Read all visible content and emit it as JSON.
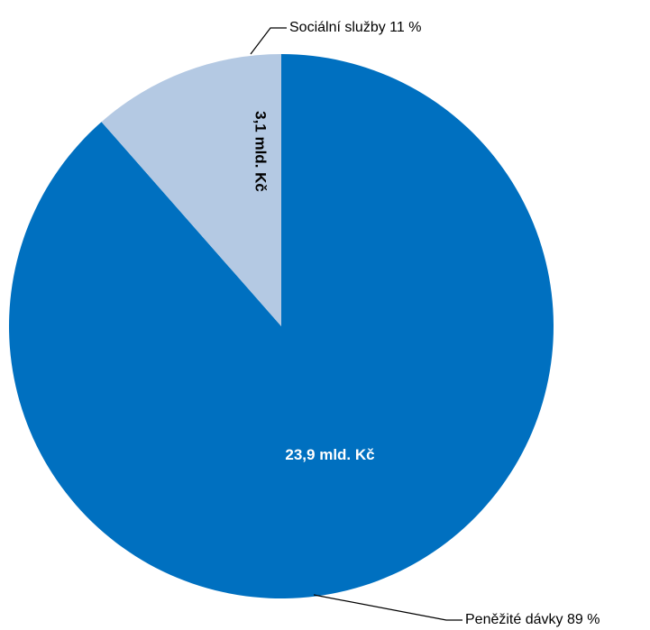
{
  "chart_data": {
    "type": "pie",
    "slices": [
      {
        "name": "Peněžité dávky",
        "percent_label": "Peněžité dávky 89 %",
        "value_label": "23,9 mld. Kč",
        "value": 23.9,
        "color": "#0070C0",
        "label_color": "#ffffff"
      },
      {
        "name": "Sociální služby",
        "percent_label": "Sociální služby 11 %",
        "value_label": "3,1 mld. Kč",
        "value": 3.1,
        "color": "#B4C9E3",
        "label_color": "#000000"
      }
    ],
    "start_angle_deg": 0,
    "direction": "counterclockwise-from-top",
    "legend": "none"
  }
}
